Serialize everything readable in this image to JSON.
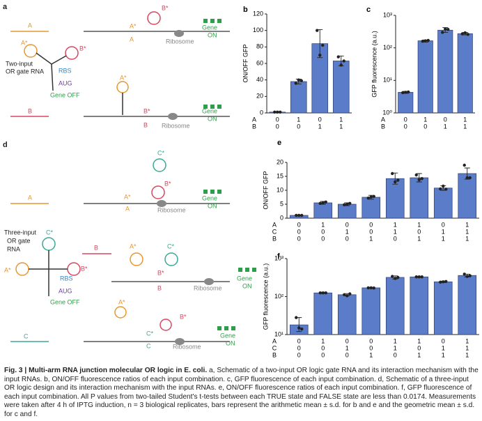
{
  "chart_data": [
    {
      "type": "bar",
      "label": "b",
      "ylabel": "ON/OFF GFP",
      "log": false,
      "color": "#5b7cc8",
      "input_names": [
        "A",
        "B"
      ],
      "inputs": [
        [
          0,
          1,
          0,
          1
        ],
        [
          0,
          0,
          1,
          1
        ]
      ],
      "values": [
        1,
        38,
        84,
        63
      ],
      "err_low": [
        0.5,
        35,
        67,
        57
      ],
      "err_high": [
        1.5,
        41,
        101,
        69
      ],
      "points": [
        [
          1,
          1,
          1
        ],
        [
          36,
          40,
          39
        ],
        [
          100,
          70,
          82
        ],
        [
          68,
          58,
          63
        ]
      ],
      "ylim": [
        0,
        120
      ],
      "yticks": [
        0,
        20,
        40,
        60,
        80,
        100,
        120
      ]
    },
    {
      "type": "bar",
      "label": "c",
      "ylabel": "GFP fluorescence (a.u.)",
      "log": true,
      "color": "#5b7cc8",
      "input_names": [
        "A",
        "B"
      ],
      "inputs": [
        [
          0,
          1,
          0,
          1
        ],
        [
          0,
          0,
          1,
          1
        ]
      ],
      "values": [
        4.3,
        165,
        350,
        273
      ],
      "err_low": [
        4,
        150,
        300,
        250
      ],
      "err_high": [
        4.6,
        175,
        420,
        300
      ],
      "points": [
        [
          4.2,
          4.3,
          4.4
        ],
        [
          160,
          165,
          170
        ],
        [
          300,
          380,
          370
        ],
        [
          270,
          290,
          260
        ]
      ],
      "ylim": [
        1,
        1000
      ],
      "yticks": [
        {
          "value": 1,
          "label": "10⁰"
        },
        {
          "value": 10,
          "label": "10¹"
        },
        {
          "value": 100,
          "label": "10²"
        },
        {
          "value": 1000,
          "label": "10³"
        }
      ]
    },
    {
      "type": "bar",
      "label": "e",
      "ylabel": "ON/OFF GFP",
      "log": false,
      "color": "#5b7cc8",
      "input_names": [
        "A",
        "C",
        "B"
      ],
      "inputs": [
        [
          0,
          1,
          0,
          0,
          1,
          1,
          0,
          1
        ],
        [
          0,
          0,
          1,
          0,
          1,
          0,
          1,
          1
        ],
        [
          0,
          0,
          0,
          1,
          0,
          1,
          1,
          1
        ]
      ],
      "values": [
        1,
        5.5,
        5,
        7.5,
        14.2,
        14.5,
        10.8,
        16
      ],
      "err_low": [
        0.8,
        5,
        4.5,
        6.8,
        12.2,
        13,
        10,
        14
      ],
      "err_high": [
        1.2,
        6,
        5.5,
        8.2,
        16.2,
        16,
        11.6,
        18
      ],
      "points": [
        [
          1,
          1,
          1
        ],
        [
          5.3,
          5.5,
          5.8
        ],
        [
          4.8,
          5,
          5.3
        ],
        [
          7.2,
          7.6,
          7.8
        ],
        [
          16,
          13,
          13.6
        ],
        [
          15.5,
          13.8,
          14.2
        ],
        [
          10.5,
          11.5,
          10.4
        ],
        [
          19,
          14.5,
          14.5
        ]
      ],
      "ylim": [
        0,
        20
      ],
      "yticks": [
        0,
        5,
        10,
        15,
        20
      ]
    },
    {
      "type": "bar",
      "label": "f",
      "ylabel": "GFP fluorescence (a.u.)",
      "log": true,
      "color": "#5b7cc8",
      "input_names": [
        "A",
        "C",
        "B"
      ],
      "inputs": [
        [
          0,
          1,
          0,
          0,
          1,
          1,
          0,
          1
        ],
        [
          0,
          0,
          1,
          0,
          1,
          0,
          1,
          1
        ],
        [
          0,
          0,
          0,
          1,
          0,
          1,
          1,
          1
        ]
      ],
      "values": [
        18,
        125,
        112,
        170,
        320,
        330,
        245,
        360
      ],
      "err_low": [
        12,
        120,
        105,
        165,
        290,
        320,
        235,
        330
      ],
      "err_high": [
        28,
        130,
        120,
        175,
        350,
        340,
        255,
        390
      ],
      "points": [
        [
          28,
          15,
          14
        ],
        [
          125,
          125,
          125
        ],
        [
          112,
          105,
          118
        ],
        [
          170,
          170,
          168
        ],
        [
          340,
          300,
          320
        ],
        [
          330,
          330,
          330
        ],
        [
          240,
          245,
          250
        ],
        [
          390,
          340,
          355
        ]
      ],
      "ylim": [
        10,
        1000
      ],
      "yticks": [
        {
          "value": 10,
          "label": "10¹"
        },
        {
          "value": 100,
          "label": "10²"
        },
        {
          "value": 1000,
          "label": "10³"
        }
      ]
    }
  ],
  "schematic_a": {
    "labels": [
      "a",
      "A",
      "A*",
      "B*",
      "Two-input",
      "OR gate RNA",
      "RBS",
      "AUG",
      "Gene OFF",
      "A*",
      "A",
      "B*",
      "Gene",
      "ON",
      "Ribosome",
      "A*",
      "B",
      "B*",
      "B",
      "Ribosome",
      "Gene",
      "ON"
    ]
  },
  "schematic_d": {
    "labels": [
      "d",
      "C*",
      "A",
      "B*",
      "A*",
      "A",
      "Ribosome",
      "Gene",
      "ON",
      "C*",
      "Three-input",
      "OR gate",
      "RNA",
      "A*",
      "B*",
      "RBS",
      "AUG",
      "Gene OFF",
      "B",
      "A*",
      "C*",
      "B*",
      "B",
      "Ribosome",
      "Gene",
      "ON",
      "C",
      "A*",
      "C*",
      "B*",
      "C",
      "Ribosome",
      "Gene",
      "ON"
    ]
  },
  "caption": {
    "title": "Fig. 3 | Multi-arm RNA junction molecular OR logic in E. coli.",
    "body": "a, Schematic of a two-input OR logic gate RNA and its interaction mechanism with the input RNAs. b, ON/OFF fluorescence ratios of each input combination. c, GFP fluorescence of each input combination. d, Schematic of a three-input OR logic design and its interaction mechanism with the input RNAs. e, ON/OFF fluorescence ratios of each input combination. f, GFP fluorescence of each input combination. All P values from two-tailed Student's t-tests between each TRUE state and FALSE state are less than 0.0174. Measurements were taken after 4 h of IPTG induction, n = 3 biological replicates, bars represent the arithmetic mean ± s.d. for b and e and the geometric mean ± s.d. for c and f."
  }
}
